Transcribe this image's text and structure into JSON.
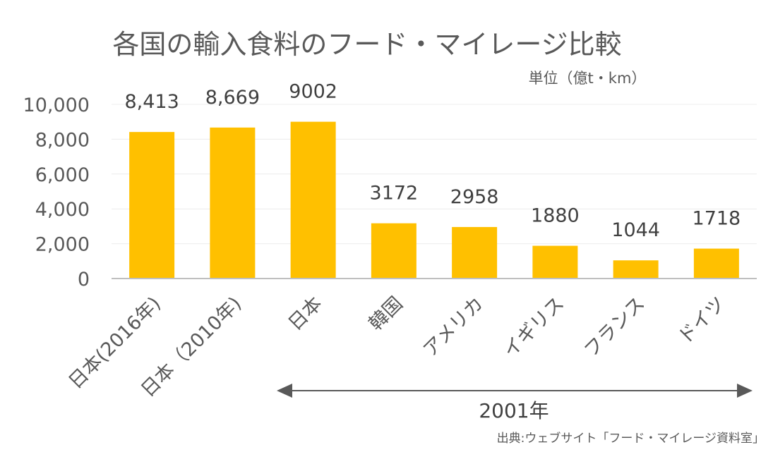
{
  "chart_data": {
    "type": "bar",
    "title": "各国の輸入食料のフード・マイレージ比較",
    "unit_label": "単位（億t・km）",
    "categories": [
      "日本(2016年)",
      "日本（2010年)",
      "日本",
      "韓国",
      "アメリカ",
      "イギリス",
      "フランス",
      "ドイツ"
    ],
    "values": [
      8413,
      8669,
      9002,
      3172,
      2958,
      1880,
      1044,
      1718
    ],
    "data_labels": [
      "8,413",
      "8,669",
      "9002",
      "3172",
      "2958",
      "1880",
      "1044",
      "1718"
    ],
    "yticks": [
      "0",
      "2,000",
      "4,000",
      "6,000",
      "8,000",
      "10,000"
    ],
    "ylim": [
      0,
      10000
    ],
    "grid": true,
    "bar_color": "#ffc000",
    "range_label": "2001年",
    "source": "出典:ウェブサイト「フード・マイレージ資料室」"
  }
}
